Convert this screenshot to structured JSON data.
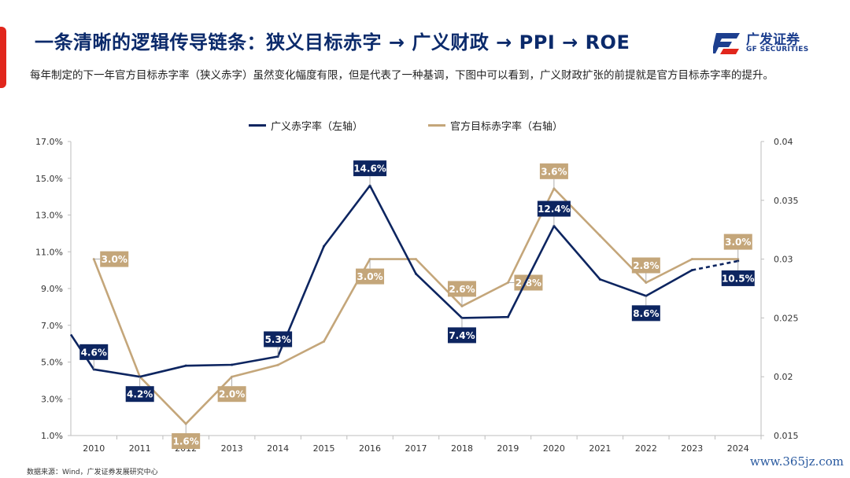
{
  "header": {
    "title": "一条清晰的逻辑传导链条：狭义目标赤字 → 广义财政 → PPI → ROE",
    "subtitle": "每年制定的下一年官方目标赤字率（狭义赤字）虽然变化幅度有限，但是代表了一种基调，下图中可以看到，广义财政扩张的前提就是官方目标赤字率的提升。"
  },
  "logo": {
    "cn": "广发证券",
    "en": "GF SECURITIES"
  },
  "source": "数据来源：Wind，广发证券发展研究中心",
  "watermark": "www.365jz.com",
  "colors": {
    "navy": "#0d2560",
    "tan": "#c4a67a",
    "accent": "#e1261c"
  },
  "chart_data": {
    "type": "line",
    "categories": [
      "2010",
      "2011",
      "2012",
      "2013",
      "2014",
      "2015",
      "2016",
      "2017",
      "2018",
      "2019",
      "2020",
      "2021",
      "2022",
      "2023",
      "2024"
    ],
    "left_axis": {
      "ylim": [
        0.01,
        0.17
      ],
      "ticks": [
        "1.0%",
        "3.0%",
        "5.0%",
        "7.0%",
        "9.0%",
        "11.0%",
        "13.0%",
        "15.0%",
        "17.0%"
      ]
    },
    "right_axis": {
      "ylim": [
        0.015,
        0.04
      ],
      "ticks": [
        "0.015",
        "0.02",
        "0.025",
        "0.03",
        "0.035",
        "0.04"
      ]
    },
    "series": [
      {
        "name": "广义赤字率（左轴）",
        "axis": "left",
        "color": "#0d2560",
        "x": [
          2009.5,
          2010,
          2011,
          2012,
          2013,
          2014,
          2015,
          2016,
          2017,
          2018,
          2019,
          2020,
          2021,
          2022,
          2023,
          2024
        ],
        "values": [
          0.065,
          0.046,
          0.042,
          0.048,
          0.0485,
          0.053,
          0.113,
          0.146,
          0.098,
          0.074,
          0.0745,
          0.124,
          0.095,
          0.086,
          0.1,
          0.105
        ],
        "dashed_last_segment": true,
        "labels": [
          {
            "year": 2010,
            "text": "4.6%",
            "position": "above"
          },
          {
            "year": 2011,
            "text": "4.2%",
            "position": "below"
          },
          {
            "year": 2014,
            "text": "5.3%",
            "position": "above"
          },
          {
            "year": 2016,
            "text": "14.6%",
            "position": "above"
          },
          {
            "year": 2018,
            "text": "7.4%",
            "position": "below"
          },
          {
            "year": 2020,
            "text": "12.4%",
            "position": "above"
          },
          {
            "year": 2022,
            "text": "8.6%",
            "position": "below"
          },
          {
            "year": 2024,
            "text": "10.5%",
            "position": "below"
          }
        ]
      },
      {
        "name": "官方目标赤字率（右轴）",
        "axis": "right",
        "color": "#c4a67a",
        "x": [
          2010,
          2011,
          2012,
          2013,
          2014,
          2015,
          2016,
          2017,
          2018,
          2019,
          2020,
          2021,
          2022,
          2023,
          2024
        ],
        "values": [
          0.03,
          0.02,
          0.016,
          0.02,
          0.021,
          0.023,
          0.03,
          0.03,
          0.026,
          0.028,
          0.036,
          0.032,
          0.028,
          0.03,
          0.03
        ],
        "labels": [
          {
            "year": 2010,
            "text": "3.0%",
            "position": "right"
          },
          {
            "year": 2012,
            "text": "1.6%",
            "position": "below"
          },
          {
            "year": 2013,
            "text": "2.0%",
            "position": "below"
          },
          {
            "year": 2016,
            "text": "3.0%",
            "position": "below"
          },
          {
            "year": 2018,
            "text": "2.6%",
            "position": "above"
          },
          {
            "year": 2019,
            "text": "2.8%",
            "position": "right"
          },
          {
            "year": 2020,
            "text": "3.6%",
            "position": "above"
          },
          {
            "year": 2022,
            "text": "2.8%",
            "position": "above"
          },
          {
            "year": 2024,
            "text": "3.0%",
            "position": "above"
          }
        ]
      }
    ],
    "grid": false,
    "legend_position": "top-center"
  }
}
